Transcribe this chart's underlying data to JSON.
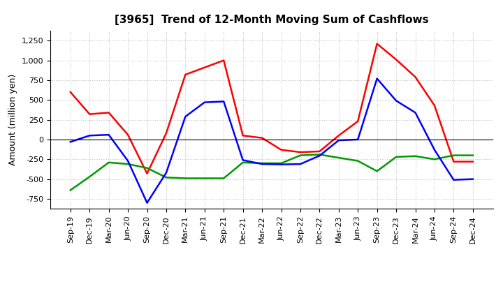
{
  "title": "[3965]  Trend of 12-Month Moving Sum of Cashflows",
  "ylabel": "Amount (million yen)",
  "xlabels": [
    "Sep-19",
    "Dec-19",
    "Mar-20",
    "Jun-20",
    "Sep-20",
    "Dec-20",
    "Mar-21",
    "Jun-21",
    "Sep-21",
    "Dec-21",
    "Mar-22",
    "Jun-22",
    "Sep-22",
    "Dec-22",
    "Mar-23",
    "Jun-23",
    "Sep-23",
    "Dec-23",
    "Mar-24",
    "Jun-24",
    "Sep-24",
    "Dec-24"
  ],
  "operating": [
    600,
    320,
    340,
    60,
    -430,
    80,
    820,
    910,
    1000,
    50,
    20,
    -130,
    -160,
    -150,
    50,
    230,
    1210,
    1010,
    790,
    430,
    -280,
    -280
  ],
  "investing": [
    -640,
    -470,
    -290,
    -310,
    -360,
    -480,
    -490,
    -490,
    -490,
    -290,
    -300,
    -300,
    -200,
    -190,
    -230,
    -270,
    -400,
    -220,
    -210,
    -250,
    -200,
    -200
  ],
  "free": [
    -30,
    50,
    60,
    -270,
    -800,
    -420,
    290,
    470,
    480,
    -260,
    -310,
    -315,
    -310,
    -205,
    -10,
    0,
    770,
    490,
    340,
    -130,
    -510,
    -500
  ],
  "ylim": [
    -875,
    1375
  ],
  "yticks": [
    -750,
    -500,
    -250,
    0,
    250,
    500,
    750,
    1000,
    1250
  ],
  "operating_color": "#ff0000",
  "investing_color": "#009900",
  "free_color": "#0000ff",
  "line_width": 1.8,
  "bg_color": "#ffffff",
  "grid_color": "#bbbbbb"
}
